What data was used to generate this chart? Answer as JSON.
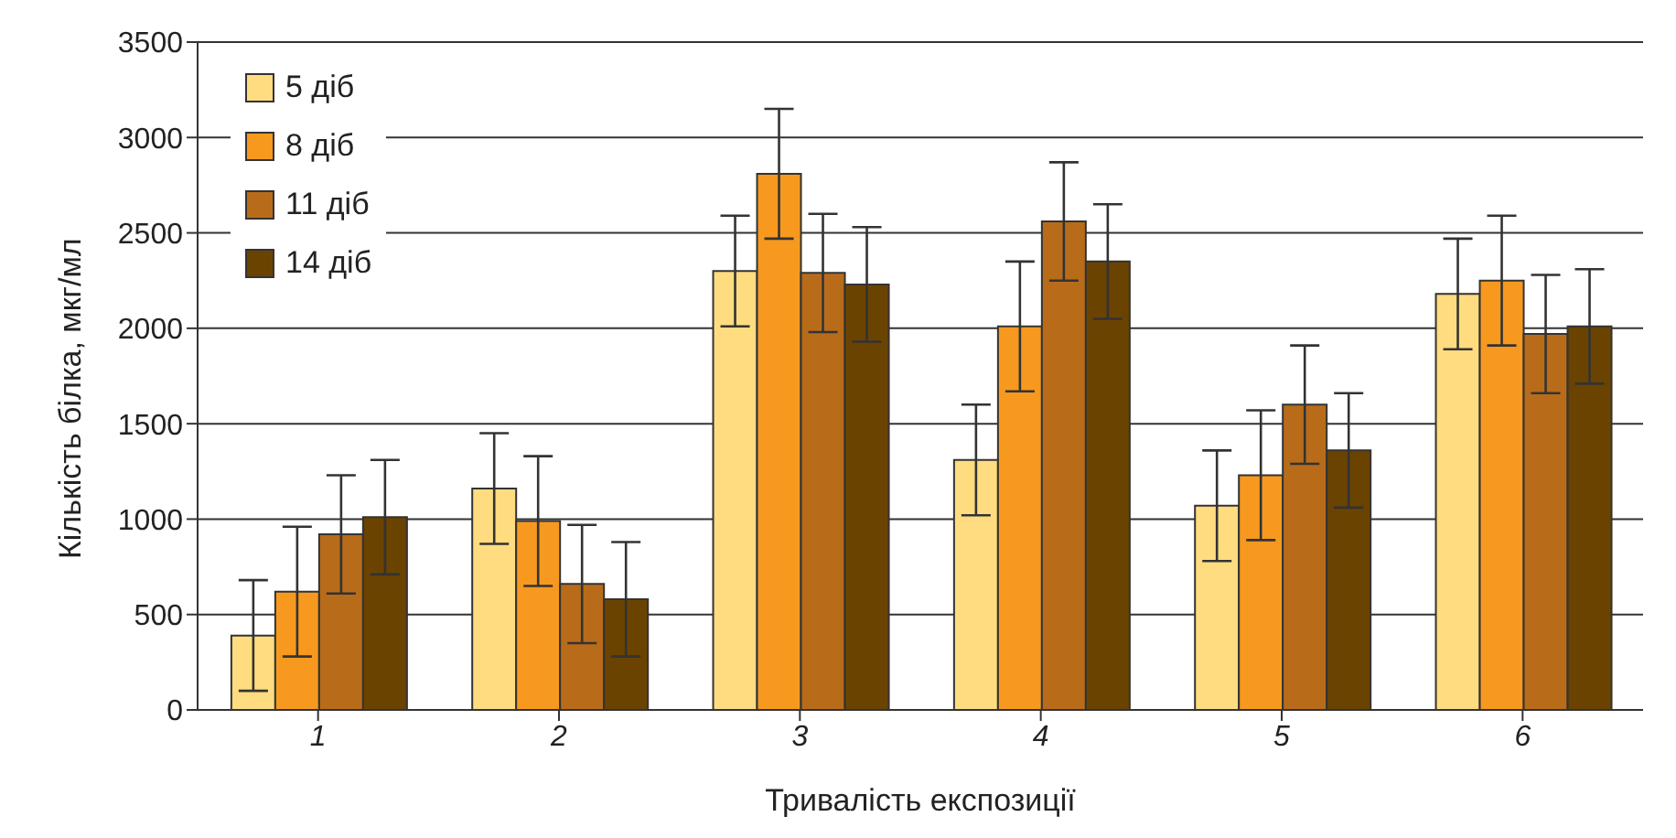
{
  "chart_data": {
    "type": "bar",
    "xlabel": "Тривалість експозиції",
    "ylabel": "Кількість білка, мкг/мл",
    "categories": [
      "1",
      "2",
      "3",
      "4",
      "5",
      "6"
    ],
    "series": [
      {
        "name": "5 діб",
        "color": "#fedc7f",
        "values": [
          390,
          1160,
          2300,
          1310,
          1070,
          2180
        ],
        "errors": [
          290,
          290,
          290,
          290,
          290,
          290
        ]
      },
      {
        "name": "8 діб",
        "color": "#f7991f",
        "values": [
          620,
          990,
          2810,
          2010,
          1230,
          2250
        ],
        "errors": [
          340,
          340,
          340,
          340,
          340,
          340
        ]
      },
      {
        "name": "11 діб",
        "color": "#b86c1a",
        "values": [
          920,
          660,
          2290,
          2560,
          1600,
          1970
        ],
        "errors": [
          310,
          310,
          310,
          310,
          310,
          310
        ]
      },
      {
        "name": "14 діб",
        "color": "#6b4300",
        "values": [
          1010,
          580,
          2230,
          2350,
          1360,
          2010
        ],
        "errors": [
          300,
          300,
          300,
          300,
          300,
          300
        ]
      }
    ],
    "ylim": [
      0,
      3500
    ],
    "yticks": [
      0,
      500,
      1000,
      1500,
      2000,
      2500,
      3000,
      3500
    ],
    "grid": "y",
    "legend": "top left"
  }
}
